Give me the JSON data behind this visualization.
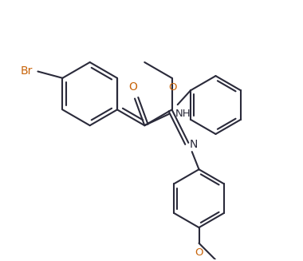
{
  "bg_color": "#ffffff",
  "bond_color": "#2a2a3a",
  "hetero_color": "#c8640a",
  "line_width": 1.5,
  "figsize": [
    3.8,
    3.27
  ],
  "dpi": 100,
  "xlim": [
    0,
    10
  ],
  "ylim": [
    0,
    8.6
  ]
}
